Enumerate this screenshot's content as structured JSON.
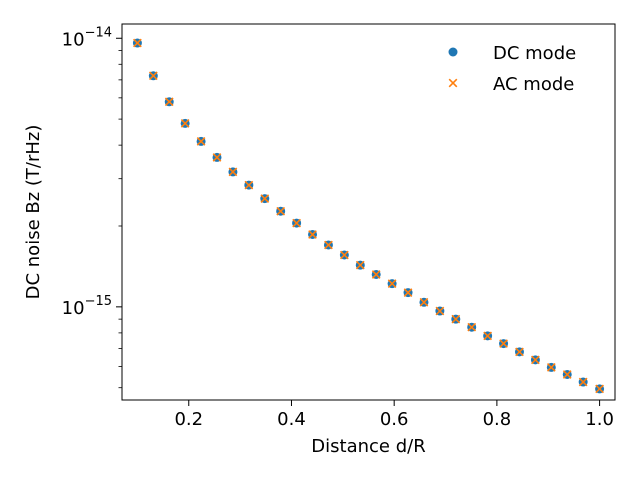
{
  "chart_data": {
    "type": "scatter",
    "xlabel": "Distance d/R",
    "ylabel": "DC noise Bz (T/rHz)",
    "yscale": "log",
    "xlim": [
      0.07,
      1.03
    ],
    "ylim": [
      4.5e-16,
      1.13e-14
    ],
    "x_ticks": [
      0.2,
      0.4,
      0.6,
      0.8,
      1.0
    ],
    "x_tick_labels": [
      "0.2",
      "0.4",
      "0.6",
      "0.8",
      "1.0"
    ],
    "y_ticks": [
      1e-15,
      1e-14
    ],
    "y_tick_labels": [
      {
        "base": "10",
        "exp": "−15"
      },
      {
        "base": "10",
        "exp": "−14"
      }
    ],
    "legend_position": "top-right",
    "grid": false,
    "series": [
      {
        "name": "DC mode",
        "marker": "circle",
        "color": "#1f77b4",
        "x": [
          0.1,
          0.131,
          0.162,
          0.193,
          0.224,
          0.255,
          0.286,
          0.317,
          0.348,
          0.379,
          0.41,
          0.441,
          0.472,
          0.503,
          0.534,
          0.565,
          0.596,
          0.627,
          0.658,
          0.689,
          0.72,
          0.751,
          0.782,
          0.813,
          0.844,
          0.875,
          0.906,
          0.937,
          0.968,
          1.0
        ],
        "y": [
          9.6e-15,
          7.25e-15,
          5.8e-15,
          4.82e-15,
          4.13e-15,
          3.6e-15,
          3.18e-15,
          2.84e-15,
          2.53e-15,
          2.27e-15,
          2.05e-15,
          1.86e-15,
          1.7e-15,
          1.56e-15,
          1.43e-15,
          1.32e-15,
          1.22e-15,
          1.13e-15,
          1.04e-15,
          9.65e-16,
          9e-16,
          8.4e-16,
          7.8e-16,
          7.3e-16,
          6.8e-16,
          6.35e-16,
          5.95e-16,
          5.6e-16,
          5.25e-16,
          4.95e-16
        ]
      },
      {
        "name": "AC mode",
        "marker": "x",
        "color": "#ff7f0e",
        "x": [
          0.1,
          0.131,
          0.162,
          0.193,
          0.224,
          0.255,
          0.286,
          0.317,
          0.348,
          0.379,
          0.41,
          0.441,
          0.472,
          0.503,
          0.534,
          0.565,
          0.596,
          0.627,
          0.658,
          0.689,
          0.72,
          0.751,
          0.782,
          0.813,
          0.844,
          0.875,
          0.906,
          0.937,
          0.968,
          1.0
        ],
        "y": [
          9.6e-15,
          7.25e-15,
          5.8e-15,
          4.82e-15,
          4.13e-15,
          3.6e-15,
          3.18e-15,
          2.84e-15,
          2.53e-15,
          2.27e-15,
          2.05e-15,
          1.86e-15,
          1.7e-15,
          1.56e-15,
          1.43e-15,
          1.32e-15,
          1.22e-15,
          1.13e-15,
          1.04e-15,
          9.65e-16,
          9e-16,
          8.4e-16,
          7.8e-16,
          7.3e-16,
          6.8e-16,
          6.35e-16,
          5.95e-16,
          5.6e-16,
          5.25e-16,
          4.95e-16
        ]
      }
    ]
  }
}
